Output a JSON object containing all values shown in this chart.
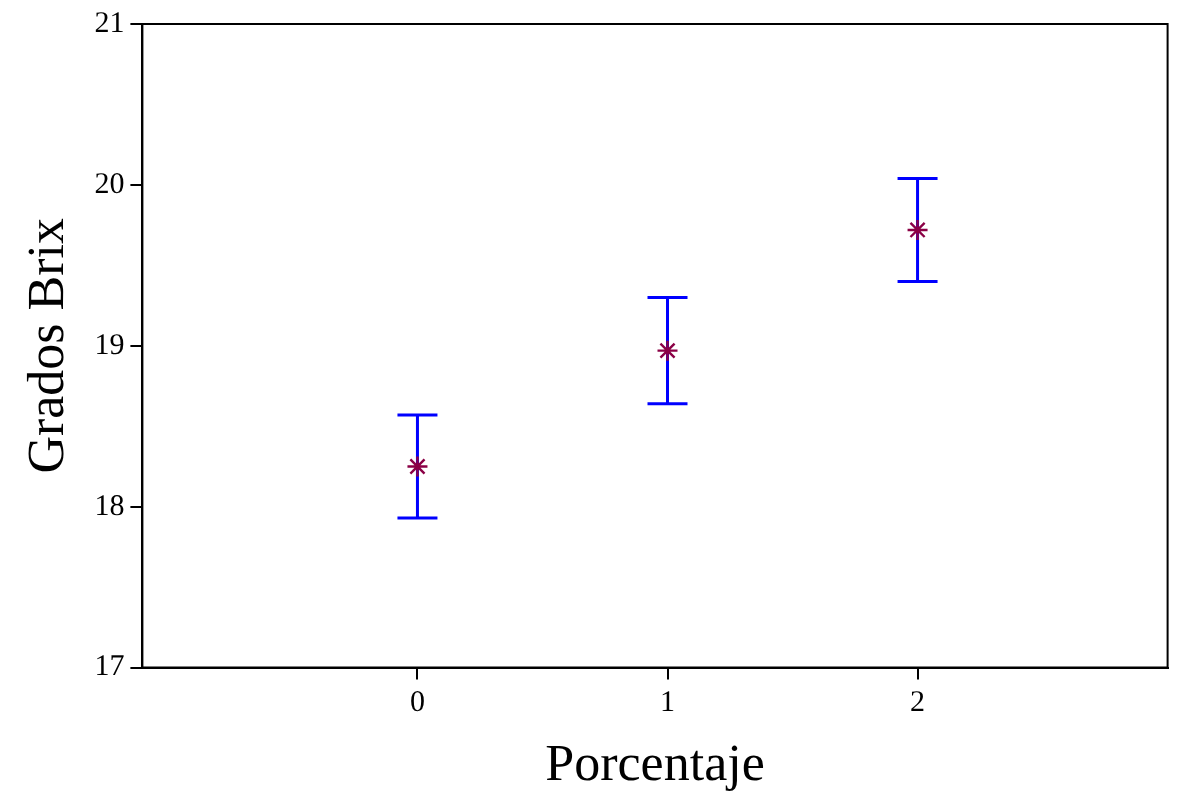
{
  "chart_data": {
    "type": "scatter",
    "xlabel": "Porcentaje",
    "ylabel": "Grados Brix",
    "x": [
      0,
      1,
      2
    ],
    "series": [
      {
        "color": "#8b0045",
        "values": [
          18.25,
          18.97,
          19.72
        ],
        "errors": [
          0.32,
          0.33,
          0.32
        ]
      }
    ],
    "xlim": [
      -1.1,
      3
    ],
    "xticks": [
      0,
      1,
      2
    ],
    "ylim": [
      17,
      21
    ],
    "yticks": [
      17,
      18,
      19,
      20,
      21
    ],
    "marker": "cross",
    "grid": false,
    "legend": false
  }
}
